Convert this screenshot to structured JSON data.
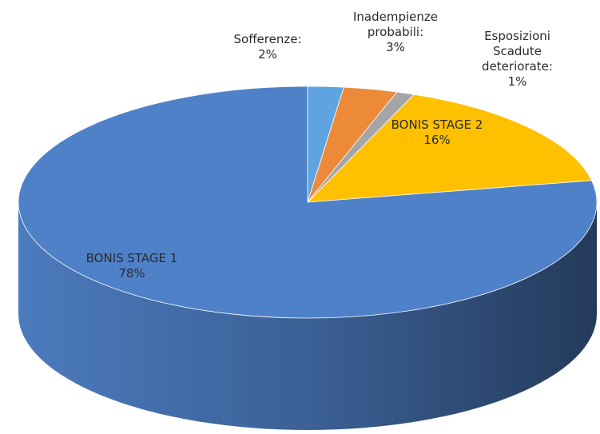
{
  "chart_data": {
    "type": "pie",
    "categories": [
      "Sofferenze:",
      "Inadempienze probabili:",
      "Esposizioni Scadute deteriorate:",
      "BONIS STAGE 2",
      "BONIS STAGE 1"
    ],
    "values": [
      2,
      3,
      1,
      16,
      78
    ],
    "value_labels": [
      "2%",
      "3%",
      "1%",
      "16%",
      "78%"
    ],
    "colors": [
      "#5fa3e0",
      "#ed8a3a",
      "#a5a5a5",
      "#ffc000",
      "#4f81c8"
    ]
  }
}
